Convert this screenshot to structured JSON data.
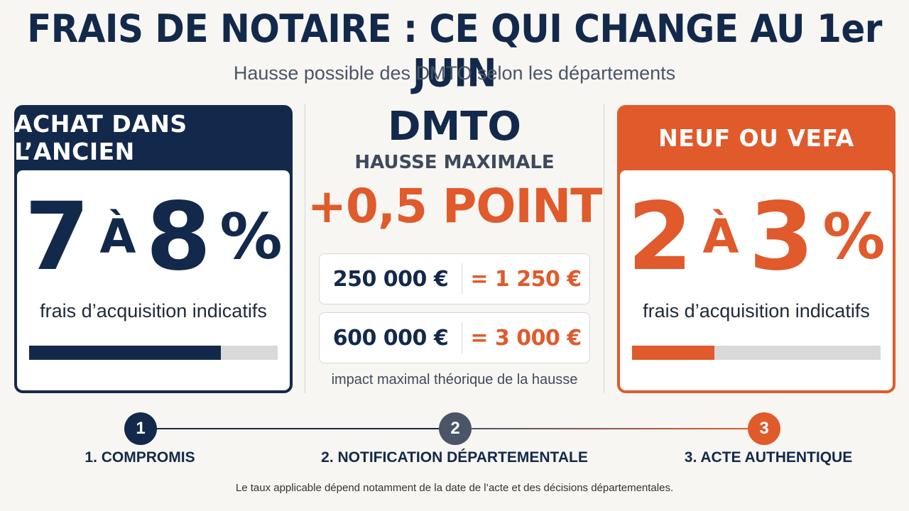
{
  "title": "FRAIS DE NOTAIRE : CE QUI CHANGE AU 1er JUIN",
  "subtitle": "Hausse possible des DMTO selon les départements",
  "colors": {
    "navy": "#13294b",
    "orange": "#e05a2b",
    "slate": "#4a5568"
  },
  "left_card": {
    "header": "ACHAT DANS L’ANCIEN",
    "min": "7",
    "connector": "À",
    "max": "8",
    "percent": "%",
    "label": "frais d’acquisition indicatifs",
    "bar_fill_fraction": 0.77
  },
  "center": {
    "title": "DMTO",
    "subtitle": "HAUSSE MAXIMALE",
    "increase": "+0,5 POINT",
    "examples": [
      {
        "amount": "250 000 €",
        "result": "= 1 250 €"
      },
      {
        "amount": "600 000 €",
        "result": "= 3 000 €"
      }
    ],
    "note": "impact maximal théorique de la hausse"
  },
  "right_card": {
    "header": "NEUF OU VEFA",
    "min": "2",
    "connector": "À",
    "max": "3",
    "percent": "%",
    "label": "frais d’acquisition indicatifs",
    "bar_fill_fraction": 0.33
  },
  "timeline": {
    "steps": [
      {
        "number": "1",
        "label": "1. COMPROMIS"
      },
      {
        "number": "2",
        "label": "2. NOTIFICATION DÉPARTEMENTALE"
      },
      {
        "number": "3",
        "label": "3. ACTE AUTHENTIQUE"
      }
    ]
  },
  "footnote": "Le taux applicable dépend notamment de la date de l’acte et des décisions départementales."
}
